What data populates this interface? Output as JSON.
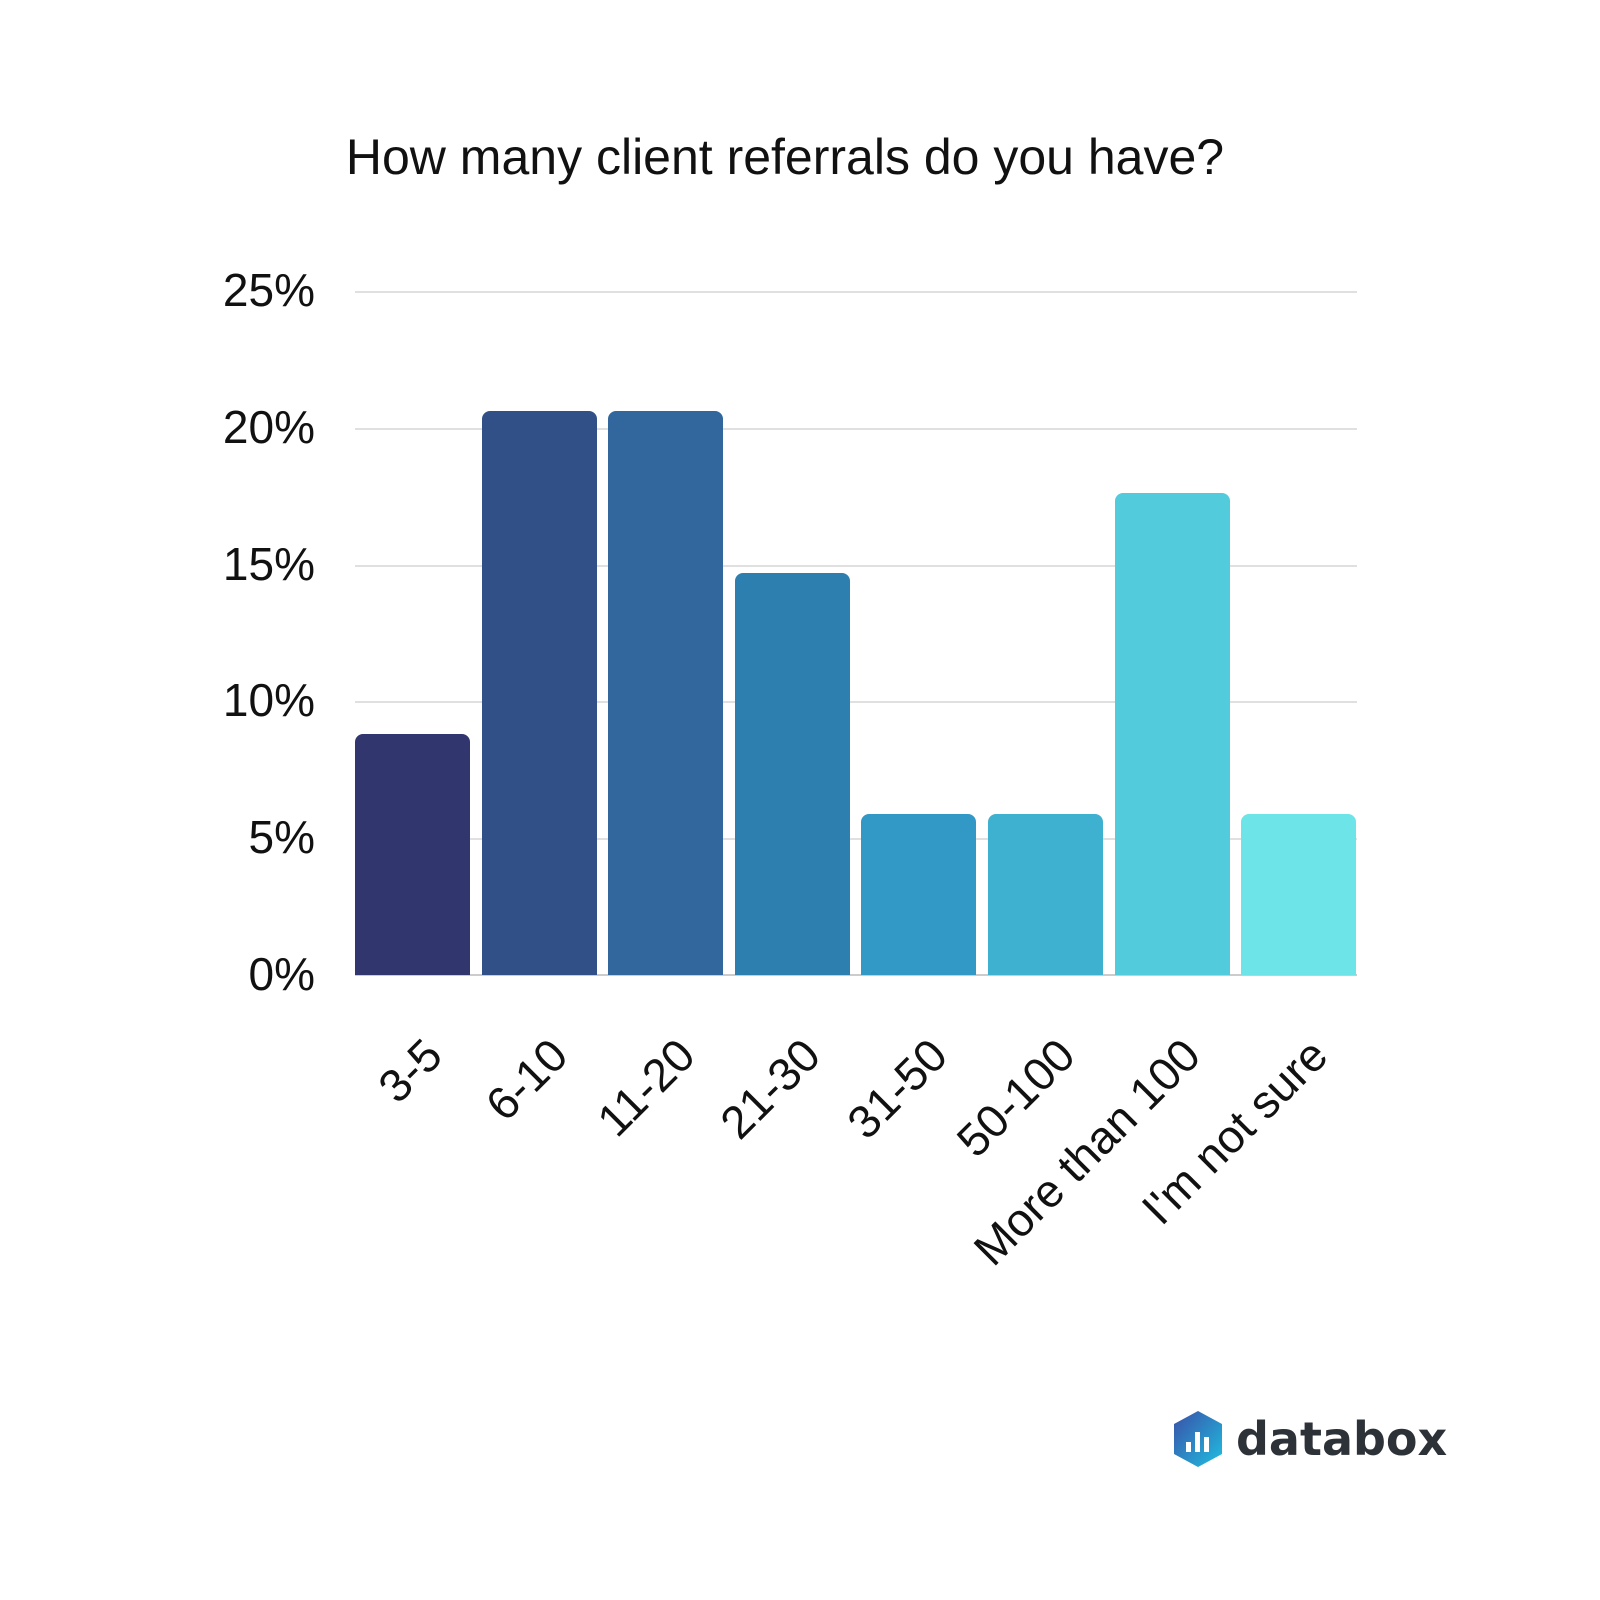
{
  "chart_data": {
    "type": "bar",
    "title": "How many client referrals do you have?",
    "categories": [
      "3-5",
      "6-10",
      "11-20",
      "21-30",
      "31-50",
      "50-100",
      "More than 100",
      "I'm not sure"
    ],
    "values": [
      8.8,
      20.6,
      20.6,
      14.7,
      5.9,
      5.9,
      17.6,
      5.9
    ],
    "colors": [
      "#32366e",
      "#315087",
      "#31679d",
      "#2d7fb0",
      "#3298c6",
      "#3eb1d1",
      "#52cbdc",
      "#6de4e7"
    ],
    "xlabel": "",
    "ylabel": "",
    "ylim": [
      0,
      25
    ],
    "yticks": [
      "25%",
      "20%",
      "15%",
      "10%",
      "5%",
      "0%"
    ],
    "grid": true,
    "legend": "none"
  },
  "branding": {
    "logo_text": "databox"
  }
}
